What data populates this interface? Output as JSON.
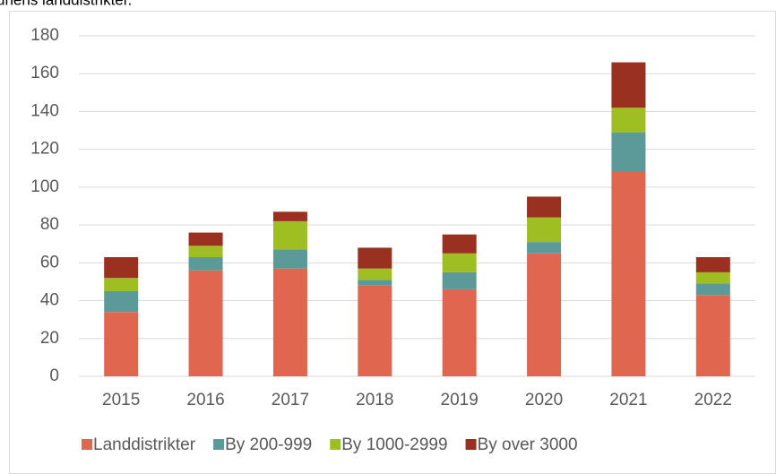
{
  "chart_data": {
    "type": "stacked_bar",
    "title": "unens landdistrikter.",
    "categories": [
      "2015",
      "2016",
      "2017",
      "2018",
      "2019",
      "2020",
      "2021",
      "2022"
    ],
    "series": [
      {
        "name": "Landdistrikter",
        "color": "#e06650",
        "values": [
          34,
          56,
          57,
          48,
          46,
          65,
          108,
          43
        ]
      },
      {
        "name": "By 200-999",
        "color": "#5b9a99",
        "values": [
          11,
          7,
          10,
          3,
          9,
          6,
          21,
          6
        ]
      },
      {
        "name": "By 1000-2999",
        "color": "#9fbe22",
        "values": [
          7,
          6,
          15,
          6,
          10,
          13,
          13,
          6
        ]
      },
      {
        "name": "By over 3000",
        "color": "#9a3020",
        "values": [
          11,
          7,
          5,
          11,
          10,
          11,
          24,
          8
        ]
      }
    ],
    "ylim": [
      0,
      180
    ],
    "yticks": [
      0,
      20,
      40,
      60,
      80,
      100,
      120,
      140,
      160,
      180
    ],
    "grid": true,
    "legend": "bottom"
  }
}
